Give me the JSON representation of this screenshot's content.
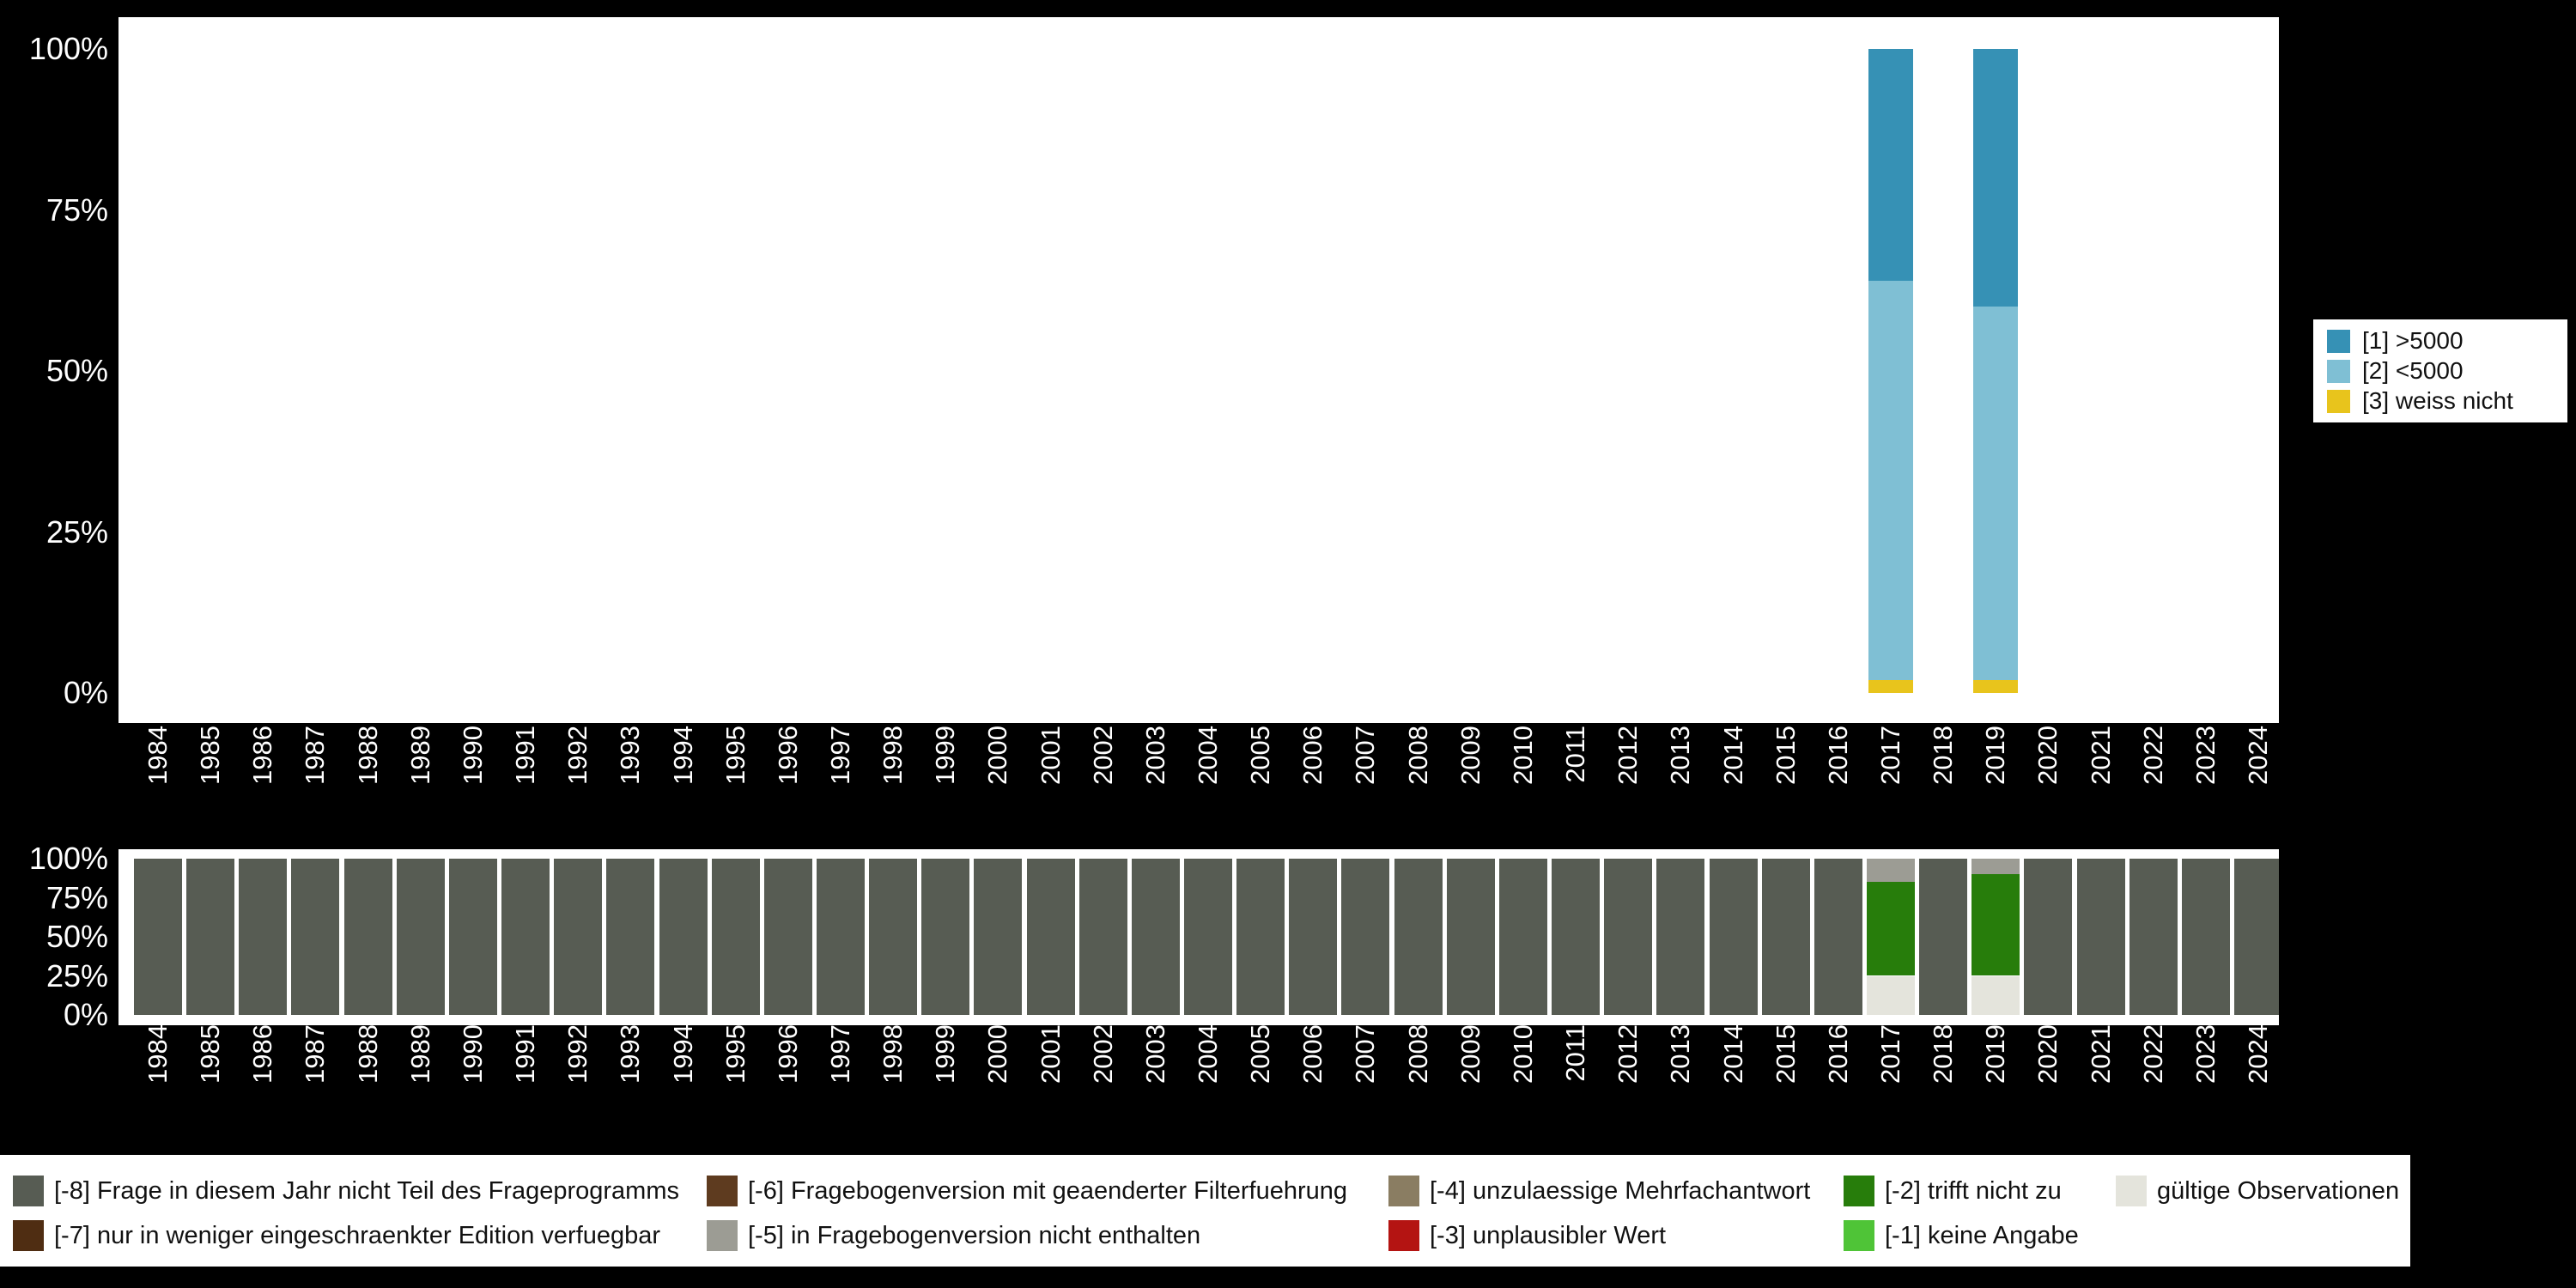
{
  "colors": {
    "background": "#000000",
    "panel": "#ffffff",
    "axis_text": "#ffffff",
    "legend_text": "#111111"
  },
  "legend": {
    "items": [
      {
        "key": "gt5000",
        "label": "[1] >5000",
        "color": "#3691b5"
      },
      {
        "key": "lt5000",
        "label": "[2] <5000",
        "color": "#7fbfd4"
      },
      {
        "key": "weiss-nicht",
        "label": "[3] weiss nicht",
        "color": "#e8c41c"
      }
    ]
  },
  "missing_legend": {
    "rows": [
      [
        {
          "key": "m8",
          "label": "[-8] Frage in diesem Jahr nicht Teil des Frageprogramms",
          "color": "#575c53"
        },
        {
          "key": "m6",
          "label": "[-6] Fragebogenversion mit geaenderter Filterfuehrung",
          "color": "#5e3b1f"
        },
        {
          "key": "m4",
          "label": "[-4] unzulaessige Mehrfachantwort",
          "color": "#8a7d62"
        },
        {
          "key": "m2",
          "label": "[-2] trifft nicht zu",
          "color": "#277d0b"
        },
        {
          "key": "valid",
          "label": "gültige Observationen",
          "color": "#e4e4dc"
        }
      ],
      [
        {
          "key": "m7",
          "label": "[-7] nur in weniger eingeschraenkter Edition verfuegbar",
          "color": "#4f2d12"
        },
        {
          "key": "m5",
          "label": "[-5] in Fragebogenversion nicht enthalten",
          "color": "#9c9c94"
        },
        {
          "key": "m3",
          "label": "[-3] unplausibler Wert",
          "color": "#b41412"
        },
        {
          "key": "m1",
          "label": "[-1] keine Angabe",
          "color": "#4fc437"
        }
      ]
    ]
  },
  "chart_data": [
    {
      "name": "frequencies",
      "type": "bar",
      "stacked": true,
      "stack_order": "bottom_to_top",
      "grid": false,
      "legend_position": "right",
      "ylim": [
        0,
        100
      ],
      "y_tick_labels": [
        "100%",
        "75%",
        "50%",
        "25%",
        "0%"
      ],
      "categories": [
        "1984",
        "1985",
        "1986",
        "1987",
        "1988",
        "1989",
        "1990",
        "1991",
        "1992",
        "1993",
        "1994",
        "1995",
        "1996",
        "1997",
        "1998",
        "1999",
        "2000",
        "2001",
        "2002",
        "2003",
        "2004",
        "2005",
        "2006",
        "2007",
        "2008",
        "2009",
        "2010",
        "2011",
        "2012",
        "2013",
        "2014",
        "2015",
        "2016",
        "2017",
        "2018",
        "2019",
        "2020",
        "2021",
        "2022",
        "2023",
        "2024"
      ],
      "series": [
        {
          "key": "weiss-nicht",
          "name": "[3] weiss nicht",
          "color": "#e8c41c",
          "values": [
            0,
            0,
            0,
            0,
            0,
            0,
            0,
            0,
            0,
            0,
            0,
            0,
            0,
            0,
            0,
            0,
            0,
            0,
            0,
            0,
            0,
            0,
            0,
            0,
            0,
            0,
            0,
            0,
            0,
            0,
            0,
            0,
            0,
            2,
            0,
            2,
            0,
            0,
            0,
            0,
            0
          ]
        },
        {
          "key": "lt5000",
          "name": "[2] <5000",
          "color": "#7fbfd4",
          "values": [
            0,
            0,
            0,
            0,
            0,
            0,
            0,
            0,
            0,
            0,
            0,
            0,
            0,
            0,
            0,
            0,
            0,
            0,
            0,
            0,
            0,
            0,
            0,
            0,
            0,
            0,
            0,
            0,
            0,
            0,
            0,
            0,
            0,
            62,
            0,
            58,
            0,
            0,
            0,
            0,
            0
          ]
        },
        {
          "key": "gt5000",
          "name": "[1] >5000",
          "color": "#3691b5",
          "values": [
            0,
            0,
            0,
            0,
            0,
            0,
            0,
            0,
            0,
            0,
            0,
            0,
            0,
            0,
            0,
            0,
            0,
            0,
            0,
            0,
            0,
            0,
            0,
            0,
            0,
            0,
            0,
            0,
            0,
            0,
            0,
            0,
            0,
            36,
            0,
            40,
            0,
            0,
            0,
            0,
            0
          ]
        }
      ]
    },
    {
      "name": "missings",
      "type": "bar",
      "stacked": true,
      "stack_order": "bottom_to_top",
      "grid": false,
      "legend_position": "bottom",
      "ylim": [
        0,
        100
      ],
      "y_tick_labels": [
        "100%",
        "75%",
        "50%",
        "25%",
        "0%"
      ],
      "categories": [
        "1984",
        "1985",
        "1986",
        "1987",
        "1988",
        "1989",
        "1990",
        "1991",
        "1992",
        "1993",
        "1994",
        "1995",
        "1996",
        "1997",
        "1998",
        "1999",
        "2000",
        "2001",
        "2002",
        "2003",
        "2004",
        "2005",
        "2006",
        "2007",
        "2008",
        "2009",
        "2010",
        "2011",
        "2012",
        "2013",
        "2014",
        "2015",
        "2016",
        "2017",
        "2018",
        "2019",
        "2020",
        "2021",
        "2022",
        "2023",
        "2024"
      ],
      "series": [
        {
          "key": "valid",
          "name": "gültige Observationen",
          "color": "#e4e4dc",
          "values": [
            0,
            0,
            0,
            0,
            0,
            0,
            0,
            0,
            0,
            0,
            0,
            0,
            0,
            0,
            0,
            0,
            0,
            0,
            0,
            0,
            0,
            0,
            0,
            0,
            0,
            0,
            0,
            0,
            0,
            0,
            0,
            0,
            0,
            25,
            0,
            25,
            0,
            0,
            0,
            0,
            0
          ]
        },
        {
          "key": "m2",
          "name": "[-2] trifft nicht zu",
          "color": "#277d0b",
          "values": [
            0,
            0,
            0,
            0,
            0,
            0,
            0,
            0,
            0,
            0,
            0,
            0,
            0,
            0,
            0,
            0,
            0,
            0,
            0,
            0,
            0,
            0,
            0,
            0,
            0,
            0,
            0,
            0,
            0,
            0,
            0,
            0,
            0,
            60,
            0,
            65,
            0,
            0,
            0,
            0,
            0
          ]
        },
        {
          "key": "m5",
          "name": "[-5] in Fragebogenversion nicht enthalten",
          "color": "#9c9c94",
          "values": [
            0,
            0,
            0,
            0,
            0,
            0,
            0,
            0,
            0,
            0,
            0,
            0,
            0,
            0,
            0,
            0,
            0,
            0,
            0,
            0,
            0,
            0,
            0,
            0,
            0,
            0,
            0,
            0,
            0,
            0,
            0,
            0,
            0,
            15,
            0,
            10,
            0,
            0,
            0,
            0,
            0
          ]
        },
        {
          "key": "m8",
          "name": "[-8] Frage in diesem Jahr nicht Teil des Frageprogramms",
          "color": "#575c53",
          "values": [
            100,
            100,
            100,
            100,
            100,
            100,
            100,
            100,
            100,
            100,
            100,
            100,
            100,
            100,
            100,
            100,
            100,
            100,
            100,
            100,
            100,
            100,
            100,
            100,
            100,
            100,
            100,
            100,
            100,
            100,
            100,
            100,
            100,
            0,
            100,
            0,
            100,
            100,
            100,
            100,
            100
          ]
        }
      ]
    }
  ]
}
